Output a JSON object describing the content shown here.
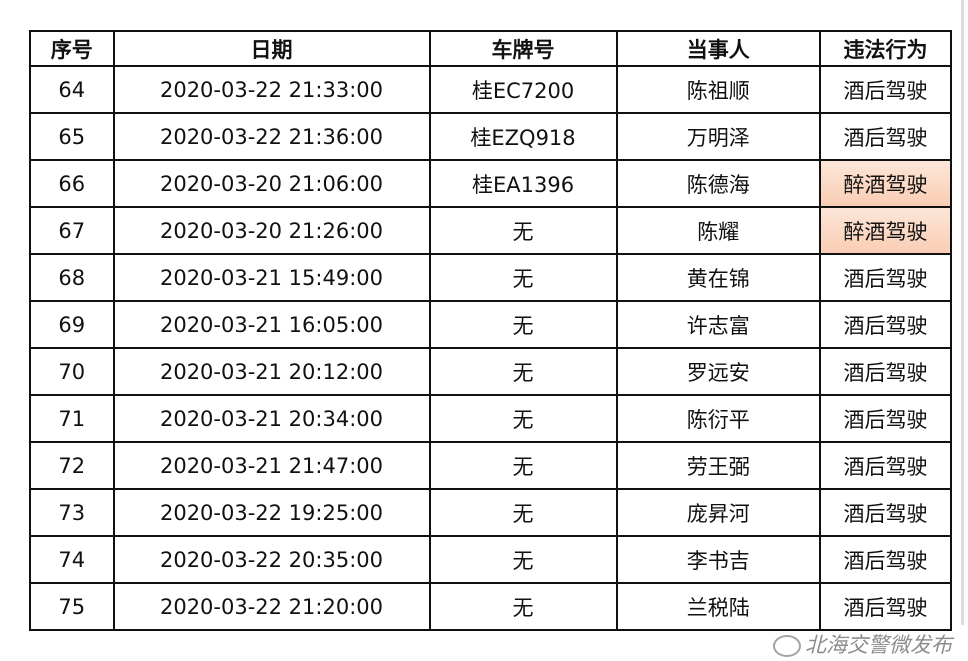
{
  "table": {
    "headers": [
      "序号",
      "日期",
      "车牌号",
      "当事人",
      "违法行为"
    ],
    "highlight_color": "#f9cdb4",
    "rows": [
      {
        "no": "64",
        "date": "2020-03-22 21:33:00",
        "plate": "桂EC7200",
        "name": "陈祖顺",
        "offense": "酒后驾驶",
        "highlight": false
      },
      {
        "no": "65",
        "date": "2020-03-22 21:36:00",
        "plate": "桂EZQ918",
        "name": "万明泽",
        "offense": "酒后驾驶",
        "highlight": false
      },
      {
        "no": "66",
        "date": "2020-03-20 21:06:00",
        "plate": "桂EA1396",
        "name": "陈德海",
        "offense": "醉酒驾驶",
        "highlight": true
      },
      {
        "no": "67",
        "date": "2020-03-20 21:26:00",
        "plate": "无",
        "name": "陈耀",
        "offense": "醉酒驾驶",
        "highlight": true
      },
      {
        "no": "68",
        "date": "2020-03-21 15:49:00",
        "plate": "无",
        "name": "黄在锦",
        "offense": "酒后驾驶",
        "highlight": false
      },
      {
        "no": "69",
        "date": "2020-03-21 16:05:00",
        "plate": "无",
        "name": "许志富",
        "offense": "酒后驾驶",
        "highlight": false
      },
      {
        "no": "70",
        "date": "2020-03-21 20:12:00",
        "plate": "无",
        "name": "罗远安",
        "offense": "酒后驾驶",
        "highlight": false
      },
      {
        "no": "71",
        "date": "2020-03-21 20:34:00",
        "plate": "无",
        "name": "陈衍平",
        "offense": "酒后驾驶",
        "highlight": false
      },
      {
        "no": "72",
        "date": "2020-03-21 21:47:00",
        "plate": "无",
        "name": "劳王弼",
        "offense": "酒后驾驶",
        "highlight": false
      },
      {
        "no": "73",
        "date": "2020-03-22 19:25:00",
        "plate": "无",
        "name": "庞昇河",
        "offense": "酒后驾驶",
        "highlight": false
      },
      {
        "no": "74",
        "date": "2020-03-22 20:35:00",
        "plate": "无",
        "name": "李书吉",
        "offense": "酒后驾驶",
        "highlight": false
      },
      {
        "no": "75",
        "date": "2020-03-22 21:20:00",
        "plate": "无",
        "name": "兰税陆",
        "offense": "酒后驾驶",
        "highlight": false
      }
    ]
  },
  "watermark": {
    "text": "北海交警微发布",
    "icon": "wechat-icon"
  }
}
